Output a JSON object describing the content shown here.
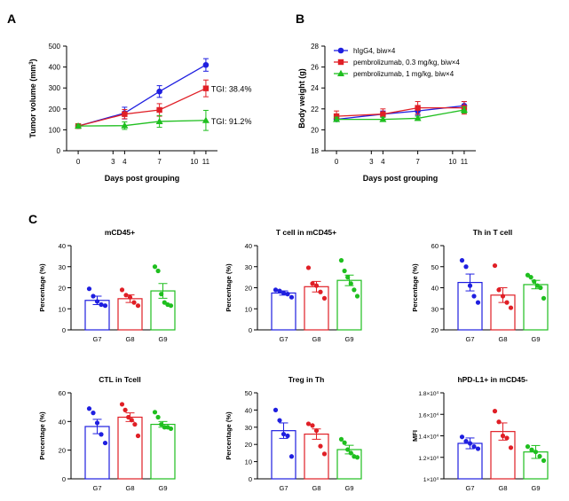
{
  "panels": {
    "A": {
      "letter": "A"
    },
    "B": {
      "letter": "B"
    },
    "C": {
      "letter": "C"
    }
  },
  "colors": {
    "blue": "#1f1fe0",
    "red": "#e01f26",
    "green": "#1fbf1f",
    "axis": "#000000"
  },
  "chart_data": [
    {
      "type": "line",
      "panel": "A",
      "xlabel": "Days post grouping",
      "ylabel": "Tumor volume (mm³)",
      "ylabel_parts": {
        "base": "Tumor volume (mm",
        "sup": "3",
        "close": ")"
      },
      "x": [
        0,
        4,
        7,
        11
      ],
      "xticks": [
        0,
        3,
        4,
        7,
        10,
        11
      ],
      "yticks": [
        0,
        100,
        200,
        300,
        400,
        500
      ],
      "xlim": [
        -1,
        12
      ],
      "ylim": [
        0,
        500
      ],
      "grid": false,
      "series": [
        {
          "color": "blue",
          "marker": "circle",
          "values": [
            118,
            180,
            283,
            410
          ],
          "errors": [
            8,
            28,
            28,
            30
          ]
        },
        {
          "color": "red",
          "marker": "square",
          "values": [
            118,
            175,
            195,
            298
          ],
          "errors": [
            8,
            22,
            30,
            40
          ]
        },
        {
          "color": "green",
          "marker": "triangle",
          "values": [
            118,
            120,
            140,
            145
          ],
          "errors": [
            8,
            18,
            28,
            48
          ]
        }
      ],
      "annotations": [
        {
          "text": "TGI: 38.4%",
          "x": 11,
          "y": 298
        },
        {
          "text": "TGI: 91.2%",
          "x": 11,
          "y": 145
        }
      ]
    },
    {
      "type": "line",
      "panel": "B",
      "xlabel": "Days post grouping",
      "ylabel": "Body weight (g)",
      "x": [
        0,
        4,
        7,
        11
      ],
      "xticks": [
        0,
        3,
        4,
        7,
        10,
        11
      ],
      "yticks": [
        18,
        20,
        22,
        24,
        26,
        28
      ],
      "xlim": [
        -1,
        12
      ],
      "ylim": [
        18,
        28
      ],
      "grid": false,
      "legend_position": "top-left",
      "series": [
        {
          "name": "hIgG4, biw×4",
          "color": "blue",
          "marker": "circle",
          "values": [
            21.0,
            21.5,
            21.8,
            22.3
          ],
          "errors": [
            0.2,
            0.3,
            0.4,
            0.4
          ]
        },
        {
          "name": "pembrolizumab, 0.3 mg/kg, biw×4",
          "color": "red",
          "marker": "square",
          "values": [
            21.3,
            21.5,
            22.1,
            22.1
          ],
          "errors": [
            0.5,
            0.5,
            0.6,
            0.6
          ]
        },
        {
          "name": "pembrolizumab, 1 mg/kg, biw×4",
          "color": "green",
          "marker": "triangle",
          "values": [
            21.0,
            21.0,
            21.1,
            21.9
          ],
          "errors": [
            0.2,
            0.2,
            0.2,
            0.3
          ]
        }
      ]
    },
    {
      "type": "bar",
      "panel": "C",
      "title": "mCD45+",
      "ylabel": "Percentage (%)",
      "categories": [
        "G7",
        "G8",
        "G9"
      ],
      "ylim": [
        0,
        40
      ],
      "yticks": [
        0,
        10,
        20,
        30,
        40
      ],
      "colors": [
        "blue",
        "red",
        "green"
      ],
      "values": [
        14,
        14.8,
        18.5
      ],
      "errors": [
        2,
        1.8,
        3.5
      ],
      "points": [
        [
          19.5,
          16,
          13.5,
          12,
          11.5
        ],
        [
          19,
          16.5,
          15.5,
          13,
          11.5
        ],
        [
          30,
          28,
          17,
          13,
          12,
          11.5
        ]
      ]
    },
    {
      "type": "bar",
      "panel": "C",
      "title": "T cell in mCD45+",
      "ylabel": "Percentage (%)",
      "categories": [
        "G7",
        "G8",
        "G9"
      ],
      "ylim": [
        0,
        40
      ],
      "yticks": [
        0,
        10,
        20,
        30,
        40
      ],
      "colors": [
        "blue",
        "red",
        "green"
      ],
      "values": [
        17.5,
        20.5,
        23.5
      ],
      "errors": [
        1,
        2.5,
        2.5
      ],
      "points": [
        [
          19,
          18.5,
          17.5,
          17,
          15.5
        ],
        [
          29.5,
          22,
          21,
          18,
          15
        ],
        [
          33,
          28,
          25,
          22,
          19,
          16
        ]
      ]
    },
    {
      "type": "bar",
      "panel": "C",
      "title": "Th in T cell",
      "ylabel": "Percentage (%)",
      "categories": [
        "G7",
        "G8",
        "G9"
      ],
      "ylim": [
        20,
        60
      ],
      "yticks": [
        20,
        30,
        40,
        50,
        60
      ],
      "colors": [
        "blue",
        "red",
        "green"
      ],
      "values": [
        42.5,
        36.5,
        41.5
      ],
      "errors": [
        4,
        3.5,
        2
      ],
      "points": [
        [
          53,
          50,
          41,
          36,
          33
        ],
        [
          50.5,
          39,
          36,
          33,
          30.5
        ],
        [
          46,
          45,
          43,
          41,
          40,
          35
        ]
      ]
    },
    {
      "type": "bar",
      "panel": "C",
      "title": "CTL in Tcell",
      "ylabel": "Percentage (%)",
      "categories": [
        "G7",
        "G8",
        "G9"
      ],
      "ylim": [
        0,
        60
      ],
      "yticks": [
        0,
        20,
        40,
        60
      ],
      "colors": [
        "blue",
        "red",
        "green"
      ],
      "values": [
        36.5,
        43,
        38
      ],
      "errors": [
        5,
        3,
        2
      ],
      "points": [
        [
          49,
          46,
          39,
          31,
          25
        ],
        [
          52,
          48,
          43,
          41,
          38,
          30
        ],
        [
          46.5,
          43,
          38,
          36,
          36,
          35
        ]
      ]
    },
    {
      "type": "bar",
      "panel": "C",
      "title": "Treg in Th",
      "ylabel": "Percentage (%)",
      "categories": [
        "G7",
        "G8",
        "G9"
      ],
      "ylim": [
        0,
        50
      ],
      "yticks": [
        0,
        10,
        20,
        30,
        40,
        50
      ],
      "colors": [
        "blue",
        "red",
        "green"
      ],
      "values": [
        28,
        26,
        17
      ],
      "errors": [
        4.5,
        3,
        2.5
      ],
      "points": [
        [
          40,
          34,
          26,
          25,
          13
        ],
        [
          32,
          31,
          28,
          19,
          14.5
        ],
        [
          23,
          21,
          17,
          15,
          13,
          12.5
        ]
      ]
    },
    {
      "type": "bar",
      "panel": "C",
      "title": "hPD-L1+ in mCD45-",
      "ylabel": "MFI",
      "categories": [
        "G7",
        "G8",
        "G9"
      ],
      "ylim": [
        10000,
        18000
      ],
      "yticks": [
        10000,
        12000,
        14000,
        16000,
        18000
      ],
      "ytick_labels": [
        {
          "base": "1×10",
          "exp": "4"
        },
        {
          "base": "1.2×10",
          "exp": "4"
        },
        {
          "base": "1.4×10",
          "exp": "4"
        },
        {
          "base": "1.6×10",
          "exp": "4"
        },
        {
          "base": "1.8×10",
          "exp": "4"
        }
      ],
      "colors": [
        "blue",
        "red",
        "green"
      ],
      "values": [
        13300,
        14400,
        12500
      ],
      "errors": [
        500,
        800,
        600
      ],
      "points": [
        [
          13900,
          13500,
          13300,
          13000,
          12800
        ],
        [
          16300,
          15300,
          14000,
          13800,
          12900
        ],
        [
          13000,
          12700,
          12500,
          12100,
          11700
        ]
      ]
    }
  ]
}
